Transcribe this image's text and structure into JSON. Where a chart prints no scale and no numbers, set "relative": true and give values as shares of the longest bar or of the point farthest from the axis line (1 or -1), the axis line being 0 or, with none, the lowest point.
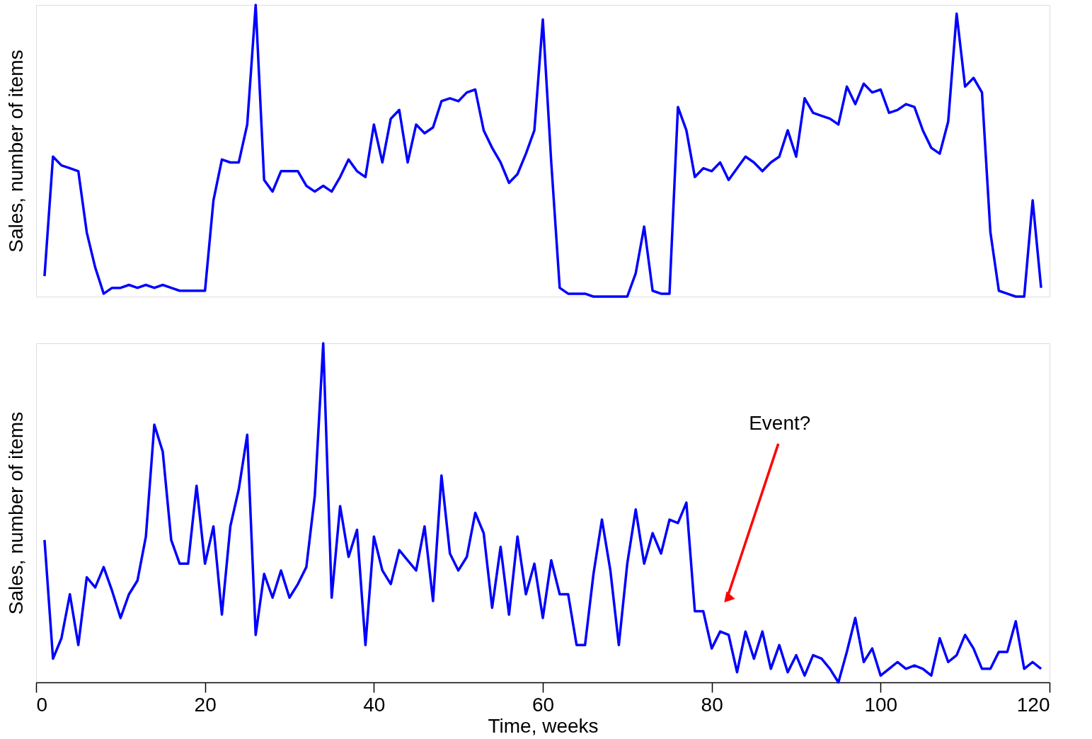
{
  "chart_data": [
    {
      "type": "line",
      "relative": true,
      "ylabel": "Sales, number of items",
      "xlim": [
        0,
        120
      ],
      "xticks": [
        0,
        20,
        40,
        60,
        80,
        100,
        120
      ],
      "tick_labels": false,
      "x": [
        1,
        2,
        3,
        4,
        5,
        6,
        7,
        8,
        9,
        10,
        11,
        12,
        13,
        14,
        15,
        16,
        17,
        18,
        19,
        20,
        21,
        22,
        23,
        24,
        25,
        26,
        27,
        28,
        29,
        30,
        31,
        32,
        33,
        34,
        35,
        36,
        37,
        38,
        39,
        40,
        41,
        42,
        43,
        44,
        45,
        46,
        47,
        48,
        49,
        50,
        51,
        52,
        53,
        54,
        55,
        56,
        57,
        58,
        59,
        60,
        61,
        62,
        63,
        64,
        65,
        66,
        67,
        68,
        69,
        70,
        71,
        72,
        73,
        74,
        75,
        76,
        77,
        78,
        79,
        80,
        81,
        82,
        83,
        84,
        85,
        86,
        87,
        88,
        89,
        90,
        91,
        92,
        93,
        94,
        95,
        96,
        97,
        98,
        99,
        100,
        101,
        102,
        103,
        104,
        105,
        106,
        107,
        108,
        109,
        110,
        111,
        112,
        113,
        114,
        115,
        116,
        117,
        118,
        119
      ],
      "series": [
        {
          "color": "#0000ff",
          "values": [
            0.07,
            0.48,
            0.45,
            0.44,
            0.43,
            0.22,
            0.1,
            0.01,
            0.03,
            0.03,
            0.04,
            0.03,
            0.04,
            0.03,
            0.04,
            0.03,
            0.02,
            0.02,
            0.02,
            0.02,
            0.33,
            0.47,
            0.46,
            0.46,
            0.59,
            1.0,
            0.4,
            0.36,
            0.43,
            0.43,
            0.43,
            0.38,
            0.36,
            0.38,
            0.36,
            0.41,
            0.47,
            0.43,
            0.41,
            0.59,
            0.46,
            0.61,
            0.64,
            0.46,
            0.59,
            0.56,
            0.58,
            0.67,
            0.68,
            0.67,
            0.7,
            0.71,
            0.57,
            0.51,
            0.46,
            0.39,
            0.42,
            0.49,
            0.57,
            0.95,
            0.46,
            0.03,
            0.01,
            0.01,
            0.01,
            0.0,
            0.0,
            0.0,
            0.0,
            0.0,
            0.08,
            0.24,
            0.02,
            0.01,
            0.01,
            0.65,
            0.57,
            0.41,
            0.44,
            0.43,
            0.46,
            0.4,
            0.44,
            0.48,
            0.46,
            0.43,
            0.46,
            0.48,
            0.57,
            0.48,
            0.68,
            0.63,
            0.62,
            0.61,
            0.59,
            0.72,
            0.66,
            0.73,
            0.7,
            0.71,
            0.63,
            0.64,
            0.66,
            0.65,
            0.57,
            0.51,
            0.49,
            0.6,
            0.97,
            0.72,
            0.75,
            0.7,
            0.22,
            0.02,
            0.01,
            0.0,
            0.0,
            0.33,
            0.03
          ]
        }
      ]
    },
    {
      "type": "line",
      "relative": true,
      "ylabel": "Sales, number of items",
      "xlabel": "Time, weeks",
      "xlim": [
        0,
        120
      ],
      "xticks": [
        0,
        20,
        40,
        60,
        80,
        100,
        120
      ],
      "tick_labels": "x",
      "annotations": [
        "Event?"
      ],
      "x": [
        1,
        2,
        3,
        4,
        5,
        6,
        7,
        8,
        9,
        10,
        11,
        12,
        13,
        14,
        15,
        16,
        17,
        18,
        19,
        20,
        21,
        22,
        23,
        24,
        25,
        26,
        27,
        28,
        29,
        30,
        31,
        32,
        33,
        34,
        35,
        36,
        37,
        38,
        39,
        40,
        41,
        42,
        43,
        44,
        45,
        46,
        47,
        48,
        49,
        50,
        51,
        52,
        53,
        54,
        55,
        56,
        57,
        58,
        59,
        60,
        61,
        62,
        63,
        64,
        65,
        66,
        67,
        68,
        69,
        70,
        71,
        72,
        73,
        74,
        75,
        76,
        77,
        78,
        79,
        80,
        81,
        82,
        83,
        84,
        85,
        86,
        87,
        88,
        89,
        90,
        91,
        92,
        93,
        94,
        95,
        96,
        97,
        98,
        99,
        100,
        101,
        102,
        103,
        104,
        105,
        106,
        107,
        108,
        109,
        110,
        111,
        112,
        113,
        114,
        115,
        116,
        117,
        118,
        119
      ],
      "series": [
        {
          "color": "#0000ff",
          "values": [
            0.42,
            0.07,
            0.13,
            0.26,
            0.11,
            0.31,
            0.28,
            0.34,
            0.27,
            0.19,
            0.26,
            0.3,
            0.43,
            0.76,
            0.68,
            0.42,
            0.35,
            0.35,
            0.58,
            0.35,
            0.46,
            0.2,
            0.46,
            0.57,
            0.73,
            0.14,
            0.32,
            0.25,
            0.33,
            0.25,
            0.29,
            0.34,
            0.55,
            1.0,
            0.25,
            0.52,
            0.37,
            0.45,
            0.11,
            0.43,
            0.33,
            0.29,
            0.39,
            0.36,
            0.33,
            0.46,
            0.24,
            0.61,
            0.38,
            0.33,
            0.37,
            0.5,
            0.44,
            0.22,
            0.4,
            0.2,
            0.43,
            0.26,
            0.35,
            0.19,
            0.36,
            0.26,
            0.26,
            0.11,
            0.11,
            0.32,
            0.48,
            0.33,
            0.11,
            0.35,
            0.51,
            0.35,
            0.44,
            0.38,
            0.48,
            0.47,
            0.53,
            0.21,
            0.21,
            0.1,
            0.15,
            0.14,
            0.03,
            0.15,
            0.07,
            0.15,
            0.04,
            0.11,
            0.03,
            0.08,
            0.02,
            0.08,
            0.07,
            0.04,
            0.0,
            0.09,
            0.19,
            0.06,
            0.1,
            0.02,
            0.04,
            0.06,
            0.04,
            0.05,
            0.04,
            0.02,
            0.13,
            0.06,
            0.08,
            0.14,
            0.1,
            0.04,
            0.04,
            0.09,
            0.09,
            0.18,
            0.04,
            0.06,
            0.04
          ]
        }
      ]
    }
  ]
}
